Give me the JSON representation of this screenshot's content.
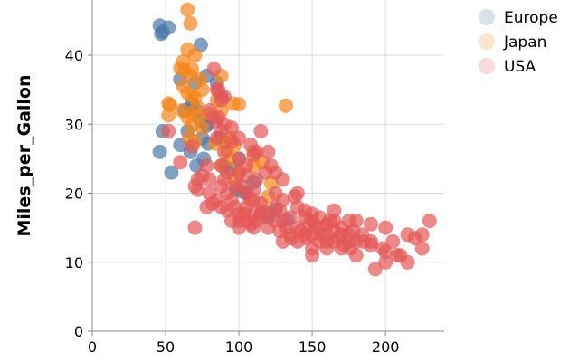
{
  "chart_data": {
    "type": "scatter",
    "xlabel": "",
    "ylabel": "Miles_per_Gallon",
    "xlim": [
      0,
      240
    ],
    "ylim": [
      0,
      48
    ],
    "x_ticks": [
      0,
      50,
      100,
      150,
      200
    ],
    "y_ticks": [
      0,
      10,
      20,
      30,
      40
    ],
    "grid": true,
    "legend_position": "top-right",
    "series": [
      {
        "name": "Europe",
        "color": "#4c78a8",
        "points": [
          [
            46,
            44.3
          ],
          [
            48,
            43.4
          ],
          [
            47,
            43.1
          ],
          [
            52,
            44.0
          ],
          [
            74,
            41.5
          ],
          [
            46,
            26.0
          ],
          [
            54,
            23.0
          ],
          [
            48,
            29.0
          ],
          [
            60,
            27.0
          ],
          [
            67,
            26.0
          ],
          [
            71,
            24.0
          ],
          [
            65,
            29.0
          ],
          [
            75,
            28.0
          ],
          [
            76,
            25.0
          ],
          [
            78,
            30.0
          ],
          [
            68,
            33.0
          ],
          [
            70,
            36.0
          ],
          [
            88,
            34.0
          ],
          [
            82,
            31.0
          ],
          [
            85,
            36.0
          ],
          [
            71,
            32.0
          ],
          [
            79,
            27.2
          ],
          [
            98,
            20.5
          ],
          [
            115,
            17.0
          ],
          [
            120,
            16.5
          ],
          [
            133,
            16.2
          ],
          [
            110,
            21.6
          ],
          [
            102,
            20.3
          ],
          [
            95,
            23.5
          ],
          [
            90,
            24.0
          ],
          [
            67,
            32.3
          ],
          [
            78,
            29.8
          ],
          [
            63,
            32.0
          ],
          [
            78,
            37.0
          ],
          [
            87,
            28.0
          ],
          [
            100,
            25.0
          ],
          [
            105,
            20.0
          ],
          [
            125,
            17.6
          ],
          [
            60,
            36.5
          ],
          [
            74,
            30.5
          ]
        ]
      },
      {
        "name": "Japan",
        "color": "#f58518",
        "points": [
          [
            65,
            46.6
          ],
          [
            67,
            44.6
          ],
          [
            65,
            40.8
          ],
          [
            62,
            39.1
          ],
          [
            60,
            38.1
          ],
          [
            67,
            37.0
          ],
          [
            68,
            38.0
          ],
          [
            70,
            40.0
          ],
          [
            88,
            37.0
          ],
          [
            75,
            35.0
          ],
          [
            65,
            31.0
          ],
          [
            52,
            33.0
          ],
          [
            53,
            32.8
          ],
          [
            52,
            31.3
          ],
          [
            61,
            32.0
          ],
          [
            67,
            31.6
          ],
          [
            68,
            34.1
          ],
          [
            70,
            33.8
          ],
          [
            72,
            32.4
          ],
          [
            80,
            31.5
          ],
          [
            88,
            32.0
          ],
          [
            96,
            33.0
          ],
          [
            100,
            32.9
          ],
          [
            132,
            32.7
          ],
          [
            90,
            27.4
          ],
          [
            97,
            27.0
          ],
          [
            88,
            24.0
          ],
          [
            95,
            25.0
          ],
          [
            110,
            24.0
          ],
          [
            116,
            24.5
          ],
          [
            122,
            21.5
          ],
          [
            120,
            19.5
          ],
          [
            97,
            22.0
          ],
          [
            75,
            29.5
          ],
          [
            94,
            28.0
          ],
          [
            84,
            27.2
          ],
          [
            62,
            35.5
          ],
          [
            66,
            28.0
          ],
          [
            70,
            27.5
          ],
          [
            92,
            26.0
          ],
          [
            74,
            36.5
          ],
          [
            65,
            34.5
          ],
          [
            63,
            37.7
          ],
          [
            68,
            29.8
          ],
          [
            73,
            31.0
          ],
          [
            110,
            26.0
          ],
          [
            100,
            23.0
          ],
          [
            85,
            33.5
          ]
        ]
      },
      {
        "name": "USA",
        "color": "#e45756",
        "points": [
          [
            52,
            29.0
          ],
          [
            60,
            24.5
          ],
          [
            68,
            26.8
          ],
          [
            70,
            21.0
          ],
          [
            70,
            15.0
          ],
          [
            72,
            22.0
          ],
          [
            78,
            18.0
          ],
          [
            80,
            20.0
          ],
          [
            83,
            38.0
          ],
          [
            85,
            35.0
          ],
          [
            88,
            33.5
          ],
          [
            86,
            31.0
          ],
          [
            85,
            28.0
          ],
          [
            90,
            26.0
          ],
          [
            88,
            24.0
          ],
          [
            90,
            22.0
          ],
          [
            92,
            20.0
          ],
          [
            95,
            19.0
          ],
          [
            97,
            18.0
          ],
          [
            100,
            17.0
          ],
          [
            100,
            15.0
          ],
          [
            105,
            18.0
          ],
          [
            105,
            16.0
          ],
          [
            110,
            19.0
          ],
          [
            110,
            17.0
          ],
          [
            110,
            15.0
          ],
          [
            115,
            18.5
          ],
          [
            115,
            16.5
          ],
          [
            120,
            17.0
          ],
          [
            125,
            18.0
          ],
          [
            130,
            19.0
          ],
          [
            130,
            16.0
          ],
          [
            130,
            13.0
          ],
          [
            135,
            14.0
          ],
          [
            140,
            18.0
          ],
          [
            140,
            15.0
          ],
          [
            140,
            13.0
          ],
          [
            145,
            16.5
          ],
          [
            145,
            14.0
          ],
          [
            150,
            17.0
          ],
          [
            150,
            14.0
          ],
          [
            150,
            12.0
          ],
          [
            150,
            11.0
          ],
          [
            155,
            15.0
          ],
          [
            155,
            13.0
          ],
          [
            160,
            14.0
          ],
          [
            160,
            12.0
          ],
          [
            165,
            17.5
          ],
          [
            165,
            16.0
          ],
          [
            165,
            13.0
          ],
          [
            170,
            14.0
          ],
          [
            170,
            12.0
          ],
          [
            175,
            13.0
          ],
          [
            175,
            14.0
          ],
          [
            180,
            16.0
          ],
          [
            180,
            13.0
          ],
          [
            180,
            11.0
          ],
          [
            190,
            15.5
          ],
          [
            190,
            13.0
          ],
          [
            193,
            9.0
          ],
          [
            198,
            12.0
          ],
          [
            200,
            15.0
          ],
          [
            200,
            10.0
          ],
          [
            208,
            11.0
          ],
          [
            210,
            11.0
          ],
          [
            215,
            14.0
          ],
          [
            215,
            10.0
          ],
          [
            220,
            13.5
          ],
          [
            225,
            12.0
          ],
          [
            225,
            14.0
          ],
          [
            230,
            16.0
          ],
          [
            100,
            25.0
          ],
          [
            105,
            24.0
          ],
          [
            95,
            27.5
          ],
          [
            100,
            28.0
          ],
          [
            108,
            27.0
          ],
          [
            112,
            26.0
          ],
          [
            115,
            29.0
          ],
          [
            120,
            26.0
          ],
          [
            122,
            24.0
          ],
          [
            125,
            23.0
          ],
          [
            130,
            22.0
          ],
          [
            110,
            25.5
          ],
          [
            105,
            22.5
          ],
          [
            98,
            21.0
          ],
          [
            92,
            23.0
          ],
          [
            88,
            21.0
          ],
          [
            85,
            19.0
          ],
          [
            82,
            18.5
          ],
          [
            80,
            22.0
          ],
          [
            78,
            24.0
          ],
          [
            75,
            22.5
          ],
          [
            72,
            20.5
          ],
          [
            90,
            30.0
          ],
          [
            88,
            29.0
          ],
          [
            84,
            30.5
          ],
          [
            80,
            32.0
          ],
          [
            86,
            35.0
          ],
          [
            90,
            34.0
          ],
          [
            95,
            29.5
          ],
          [
            100,
            23.0
          ],
          [
            102,
            21.0
          ],
          [
            105,
            20.0
          ],
          [
            108,
            19.0
          ],
          [
            110,
            20.5
          ],
          [
            112,
            22.0
          ],
          [
            118,
            23.0
          ],
          [
            125,
            20.0
          ],
          [
            128,
            17.5
          ],
          [
            135,
            16.5
          ],
          [
            138,
            19.5
          ],
          [
            140,
            20.0
          ],
          [
            145,
            17.5
          ],
          [
            150,
            16.0
          ],
          [
            155,
            16.5
          ],
          [
            160,
            15.5
          ],
          [
            165,
            14.5
          ],
          [
            170,
            15.0
          ],
          [
            175,
            16.0
          ],
          [
            185,
            13.0
          ],
          [
            190,
            12.5
          ],
          [
            200,
            11.5
          ],
          [
            205,
            13.0
          ],
          [
            95,
            16.0
          ],
          [
            92,
            17.5
          ],
          [
            88,
            18.0
          ],
          [
            100,
            16.0
          ],
          [
            104,
            17.0
          ],
          [
            108,
            15.5
          ],
          [
            112,
            16.0
          ],
          [
            116,
            17.5
          ],
          [
            120,
            15.0
          ],
          [
            124,
            16.0
          ],
          [
            128,
            14.5
          ],
          [
            132,
            15.0
          ],
          [
            136,
            13.5
          ],
          [
            142,
            14.5
          ],
          [
            146,
            13.5
          ],
          [
            148,
            15.5
          ],
          [
            152,
            15.0
          ],
          [
            156,
            14.0
          ],
          [
            160,
            13.0
          ],
          [
            162,
            16.0
          ],
          [
            168,
            13.5
          ],
          [
            172,
            12.5
          ],
          [
            176,
            12.0
          ],
          [
            178,
            14.5
          ],
          [
            184,
            14.0
          ]
        ]
      }
    ]
  }
}
